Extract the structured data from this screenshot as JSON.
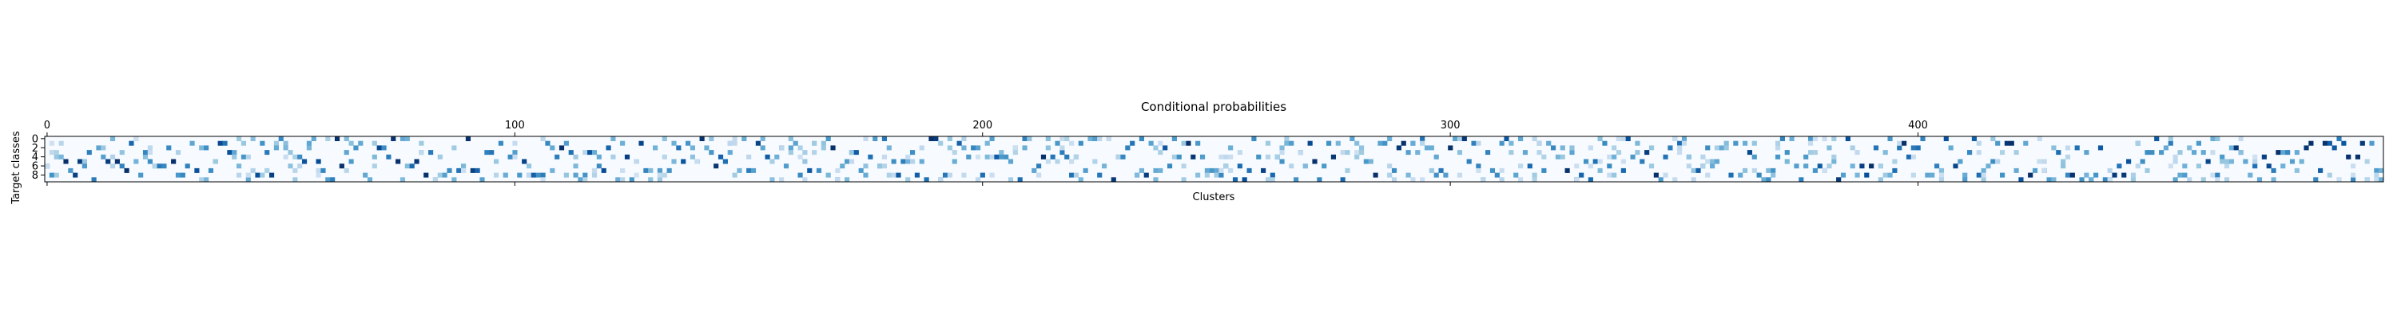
{
  "chart_data": {
    "type": "heatmap",
    "title": "Conditional probabilities",
    "xlabel": "Clusters",
    "ylabel": "Target classes",
    "colormap": "Blues",
    "xlim": [
      0,
      499
    ],
    "ylim": [
      0,
      9
    ],
    "x_ticks": [
      0,
      100,
      200,
      300,
      400
    ],
    "x_tick_labels": [
      "0",
      "100",
      "200",
      "300",
      "400"
    ],
    "x_ticks_position": "top",
    "y_ticks": [
      0,
      2,
      4,
      6,
      8
    ],
    "y_tick_labels": [
      "0",
      "2",
      "4",
      "6",
      "8"
    ],
    "n_clusters": 500,
    "n_classes": 10,
    "value_range": [
      0,
      1
    ],
    "grid": false,
    "legend": "none"
  }
}
